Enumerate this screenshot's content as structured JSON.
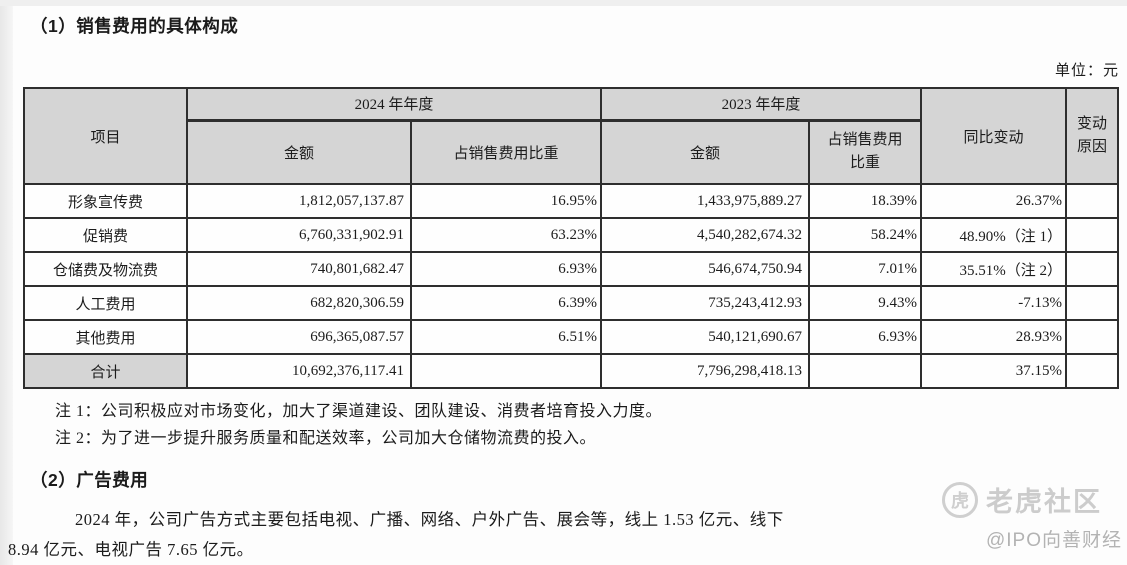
{
  "page": {
    "section1_title": "（1）销售费用的具体构成",
    "unit_label": "单位：元",
    "note1": "注 1：公司积极应对市场变化，加大了渠道建设、团队建设、消费者培育投入力度。",
    "note2": "注 2：为了进一步提升服务质量和配送效率，公司加大仓储物流费的投入。",
    "section2_title": "（2）广告费用",
    "ad_paragraph_line1": "2024 年，公司广告方式主要包括电视、广播、网络、户外广告、展会等，线上 1.53 亿元、线下",
    "ad_paragraph_line2": "8.94 亿元、电视广告 7.65 亿元。"
  },
  "table": {
    "headers": {
      "item": "项目",
      "year_2024": "2024 年年度",
      "year_2023": "2023 年年度",
      "amount": "金额",
      "ratio": "占销售费用比重",
      "yoy": "同比变动",
      "reason": "变动原因"
    },
    "rows": [
      {
        "item": "形象宣传费",
        "amount_2024": "1,812,057,137.87",
        "ratio_2024": "16.95%",
        "amount_2023": "1,433,975,889.27",
        "ratio_2023": "18.39%",
        "yoy": "26.37%",
        "reason": ""
      },
      {
        "item": "促销费",
        "amount_2024": "6,760,331,902.91",
        "ratio_2024": "63.23%",
        "amount_2023": "4,540,282,674.32",
        "ratio_2023": "58.24%",
        "yoy": "48.90%（注 1）",
        "reason": ""
      },
      {
        "item": "仓储费及物流费",
        "amount_2024": "740,801,682.47",
        "ratio_2024": "6.93%",
        "amount_2023": "546,674,750.94",
        "ratio_2023": "7.01%",
        "yoy": "35.51%（注 2）",
        "reason": ""
      },
      {
        "item": "人工费用",
        "amount_2024": "682,820,306.59",
        "ratio_2024": "6.39%",
        "amount_2023": "735,243,412.93",
        "ratio_2023": "9.43%",
        "yoy": "-7.13%",
        "reason": ""
      },
      {
        "item": "其他费用",
        "amount_2024": "696,365,087.57",
        "ratio_2024": "6.51%",
        "amount_2023": "540,121,690.67",
        "ratio_2023": "6.93%",
        "yoy": "28.93%",
        "reason": ""
      },
      {
        "item": "合计",
        "amount_2024": "10,692,376,117.41",
        "ratio_2024": "",
        "amount_2023": "7,796,298,418.13",
        "ratio_2023": "",
        "yoy": "37.15%",
        "reason": ""
      }
    ]
  },
  "watermark": {
    "logo_char": "虎",
    "community": "老虎社区",
    "handle": "@IPO向善财经"
  },
  "colors": {
    "header_fill": "#d5d5d5",
    "border": "#2e2e2e",
    "watermark_gray": "#cccccc"
  }
}
